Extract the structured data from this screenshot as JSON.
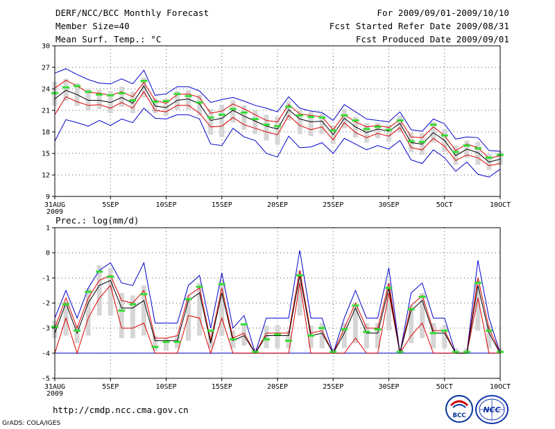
{
  "header": {
    "title": "DERF/NCC/BCC Monthly Forecast",
    "member_size": "Member Size=40",
    "variable_temp": "Mean Surf. Temp.: °C",
    "period": "For 2009/09/01-2009/10/10",
    "started": "Fcst Started Refer Date 2009/08/31",
    "produced": "Fcst Produced Date 2009/09/01"
  },
  "footer": {
    "url": "http://cmdp.ncc.cma.gov.cn",
    "grads": "GrADS: COLA/IGES",
    "logo_bcc": "BCC",
    "logo_ncc": "NCC"
  },
  "colors": {
    "outer": "#0000cc",
    "inner": "#dd0000",
    "mean": "#000000",
    "obs": "#33dd33",
    "box": "#d6d6d6"
  },
  "chart_data": [
    {
      "type": "line",
      "title": "Mean Surf. Temp.: °C",
      "ylabel": "°C",
      "ylim": [
        9,
        30
      ],
      "yticks": [
        9,
        12,
        15,
        18,
        21,
        24,
        27,
        30
      ],
      "x": [
        0,
        1,
        2,
        3,
        4,
        5,
        6,
        7,
        8,
        9,
        10,
        11,
        12,
        13,
        14,
        15,
        16,
        17,
        18,
        19,
        20,
        21,
        22,
        23,
        24,
        25,
        26,
        27,
        28,
        29,
        30,
        31,
        32,
        33,
        34,
        35,
        36,
        37,
        38,
        39,
        40
      ],
      "xticks": [
        {
          "x": 0,
          "label": "31AUG",
          "sub": "2009"
        },
        {
          "x": 5,
          "label": "5SEP"
        },
        {
          "x": 10,
          "label": "10SEP"
        },
        {
          "x": 15,
          "label": "15SEP"
        },
        {
          "x": 20,
          "label": "20SEP"
        },
        {
          "x": 25,
          "label": "25SEP"
        },
        {
          "x": 30,
          "label": "30SEP"
        },
        {
          "x": 35,
          "label": "5OCT"
        },
        {
          "x": 40,
          "label": "10OCT"
        }
      ],
      "series": [
        {
          "name": "max",
          "color": "blue",
          "values": [
            26.2,
            26.8,
            26,
            25.3,
            24.8,
            24.7,
            25.4,
            24.7,
            26.6,
            23.1,
            23.3,
            24.3,
            24.3,
            23.7,
            22.1,
            22.5,
            22.8,
            22.3,
            21.7,
            21.3,
            20.8,
            22.9,
            21.3,
            20.9,
            20.7,
            19.6,
            21.8,
            20.8,
            19.8,
            19.6,
            19.4,
            20.8,
            18.3,
            18.1,
            19.8,
            19.1,
            17,
            17.3,
            17.2,
            15.4,
            15.3
          ]
        },
        {
          "name": "p90",
          "color": "red",
          "values": [
            24.1,
            25.2,
            24.4,
            23.5,
            23.4,
            23.1,
            23.6,
            22.9,
            24.9,
            22.4,
            22,
            23.2,
            23.3,
            22.8,
            20.6,
            20.9,
            21.9,
            21.2,
            20.4,
            19.6,
            19.4,
            21.8,
            20.5,
            20.3,
            20.1,
            18.3,
            20.4,
            19.4,
            18.7,
            18.9,
            18.6,
            19.7,
            17.3,
            17.2,
            18.7,
            17.5,
            15.4,
            16.3,
            15.8,
            14.3,
            14.7
          ]
        },
        {
          "name": "mean",
          "color": "black",
          "values": [
            22.6,
            23.8,
            23.2,
            22.4,
            22.4,
            22.1,
            22.8,
            22,
            24.4,
            21.6,
            21.4,
            22.4,
            22.6,
            21.9,
            19.6,
            19.9,
            21,
            20.2,
            19.5,
            18.8,
            18.4,
            21.1,
            19.8,
            19.4,
            19.5,
            17.6,
            19.9,
            18.7,
            17.9,
            18.4,
            18.1,
            19.2,
            16.5,
            16.3,
            17.9,
            16.8,
            14.7,
            15.6,
            15.1,
            13.8,
            14.2
          ]
        },
        {
          "name": "p10",
          "color": "red",
          "values": [
            20.4,
            22.9,
            22.2,
            21.7,
            21.8,
            21.3,
            22.1,
            21.3,
            23.6,
            21,
            20.8,
            21.7,
            21.7,
            20.6,
            18.7,
            18.8,
            20,
            19,
            18.5,
            18,
            17.6,
            20.3,
            18.9,
            18.3,
            18.7,
            16.9,
            19.3,
            17.9,
            17.2,
            17.8,
            17.4,
            18.6,
            15.8,
            15.5,
            17.1,
            16,
            14,
            14.8,
            14.4,
            13.3,
            13.6
          ]
        },
        {
          "name": "min",
          "color": "blue",
          "values": [
            16.7,
            19.7,
            19.3,
            18.8,
            19.6,
            18.9,
            19.8,
            19.3,
            21.3,
            19.9,
            19.8,
            20.4,
            20.4,
            19.8,
            16.3,
            16.1,
            18.5,
            17.3,
            16.8,
            15,
            14.5,
            17.4,
            15.8,
            15.9,
            16.5,
            15,
            17.1,
            16.3,
            15.5,
            16.1,
            15.6,
            16.8,
            14.1,
            13.6,
            15.5,
            14.4,
            12.5,
            13.8,
            12.1,
            11.7,
            12.8
          ]
        },
        {
          "name": "obs",
          "color": "green",
          "values": [
            23.4,
            24.2,
            24.4,
            23.6,
            23.2,
            23.1,
            23.4,
            22.4,
            25.1,
            22.2,
            22.3,
            23.3,
            23,
            22.1,
            20,
            20.4,
            21.2,
            20.7,
            19.8,
            19,
            18.8,
            21.5,
            20.3,
            20.1,
            20,
            18.2,
            20.3,
            19.6,
            18.4,
            18.7,
            18.3,
            19.6,
            16.7,
            16.6,
            19,
            17.5,
            15.2,
            16.1,
            15.7,
            14.4,
            14.8
          ]
        },
        {
          "name": "box_top",
          "color": "gray",
          "values": [
            25,
            25.4,
            24.8,
            24,
            23.9,
            23.7,
            24.3,
            23.6,
            25.6,
            22.7,
            22.6,
            23.7,
            23.8,
            23.2,
            21.2,
            21.8,
            22.4,
            21.7,
            21,
            20.4,
            20.1,
            22.3,
            21,
            20.8,
            20.6,
            18.9,
            21.2,
            20.1,
            19.2,
            19.3,
            19,
            20.3,
            17.9,
            17.8,
            19.4,
            18.4,
            16.1,
            16.8,
            16.6,
            14.9,
            15.3
          ]
        },
        {
          "name": "box_bottom",
          "color": "gray",
          "values": [
            21.6,
            22.3,
            21.6,
            21,
            21.2,
            20.6,
            21.5,
            20.6,
            22.8,
            20.6,
            20.2,
            21.1,
            21.1,
            20.3,
            17.6,
            17.3,
            19.3,
            18.3,
            17.7,
            16.8,
            16.2,
            19.6,
            17.7,
            17.4,
            17.7,
            16.3,
            18.5,
            17.2,
            16.5,
            17.1,
            16.6,
            17.9,
            15.2,
            14.8,
            16.5,
            15.2,
            13.4,
            14.4,
            13.4,
            12.7,
            13.4
          ]
        }
      ]
    },
    {
      "type": "line",
      "title": "Prec.: log(mm/d)",
      "ylabel": "log(mm/d)",
      "ylim": [
        -5,
        1
      ],
      "yticks": [
        -5,
        -4,
        -3,
        -2,
        -1,
        0,
        1
      ],
      "x": [
        0,
        1,
        2,
        3,
        4,
        5,
        6,
        7,
        8,
        9,
        10,
        11,
        12,
        13,
        14,
        15,
        16,
        17,
        18,
        19,
        20,
        21,
        22,
        23,
        24,
        25,
        26,
        27,
        28,
        29,
        30,
        31,
        32,
        33,
        34,
        35,
        36,
        37,
        38,
        39,
        40
      ],
      "xticks": [
        {
          "x": 0,
          "label": "31AUG",
          "sub": "2009"
        },
        {
          "x": 5,
          "label": "5SEP"
        },
        {
          "x": 10,
          "label": "10SEP"
        },
        {
          "x": 15,
          "label": "15SEP"
        },
        {
          "x": 20,
          "label": "20SEP"
        },
        {
          "x": 25,
          "label": "25SEP"
        },
        {
          "x": 30,
          "label": "30SEP"
        },
        {
          "x": 35,
          "label": "5OCT"
        },
        {
          "x": 40,
          "label": "10OCT"
        }
      ],
      "series": [
        {
          "name": "max",
          "color": "blue",
          "values": [
            -2.6,
            -1.5,
            -2.6,
            -1.4,
            -0.7,
            -0.4,
            -1.2,
            -1.3,
            -0.4,
            -2.8,
            -2.8,
            -2.8,
            -1.3,
            -0.9,
            -3,
            -0.8,
            -3,
            -2.5,
            -4,
            -2.6,
            -2.6,
            -2.6,
            0.1,
            -2.6,
            -2.6,
            -4,
            -2.6,
            -1.5,
            -2.6,
            -2.6,
            -0.6,
            -4,
            -1.6,
            -1.2,
            -2.6,
            -2.6,
            -4,
            -4,
            -0.3,
            -2.6,
            -4
          ]
        },
        {
          "name": "p90",
          "color": "red",
          "values": [
            -3,
            -1.8,
            -3,
            -1.8,
            -1.1,
            -0.9,
            -1.9,
            -2,
            -1.5,
            -3.4,
            -3.4,
            -3.3,
            -1.7,
            -1.4,
            -3.5,
            -1.4,
            -3.4,
            -3.2,
            -4,
            -3.2,
            -3.2,
            -3.2,
            -0.7,
            -3.2,
            -3.1,
            -4,
            -3,
            -2,
            -3,
            -3,
            -1.2,
            -4,
            -2.1,
            -1.7,
            -3.1,
            -3.1,
            -4,
            -4,
            -1,
            -3,
            -4
          ]
        },
        {
          "name": "mean",
          "color": "black",
          "values": [
            -3.2,
            -2,
            -3.2,
            -2,
            -1.3,
            -1.1,
            -2.2,
            -2.2,
            -1.9,
            -3.5,
            -3.5,
            -3.5,
            -1.9,
            -1.6,
            -3.6,
            -1.6,
            -3.5,
            -3.3,
            -4,
            -3.3,
            -3.3,
            -3.3,
            -0.9,
            -3.3,
            -3.2,
            -4,
            -3.2,
            -2.2,
            -3.2,
            -3.2,
            -1.4,
            -4,
            -2.3,
            -1.9,
            -3.2,
            -3.2,
            -4,
            -4,
            -1.3,
            -3.2,
            -4
          ]
        },
        {
          "name": "p10",
          "color": "red",
          "values": [
            -4,
            -2.6,
            -4,
            -2.6,
            -1.8,
            -1.3,
            -3,
            -3,
            -2.8,
            -4,
            -4,
            -4,
            -2.5,
            -2.6,
            -4,
            -2.6,
            -4,
            -4,
            -4,
            -4,
            -4,
            -4,
            -1.2,
            -4,
            -4,
            -4,
            -4,
            -3.4,
            -4,
            -4,
            -1.6,
            -4,
            -3.3,
            -2.8,
            -4,
            -4,
            -4,
            -4,
            -1.8,
            -4,
            -4
          ]
        },
        {
          "name": "min",
          "color": "blue",
          "values": [
            -4,
            -4,
            -4,
            -4,
            -4,
            -4,
            -4,
            -4,
            -4,
            -4,
            -4,
            -4,
            -4,
            -4,
            -4,
            -4,
            -4,
            -4,
            -4,
            -4,
            -4,
            -4,
            -4,
            -4,
            -4,
            -4,
            -4,
            -4,
            -4,
            -4,
            -4,
            -4,
            -4,
            -4,
            -4,
            -4,
            -4,
            -4,
            -4,
            -4,
            -4
          ]
        },
        {
          "name": "obs",
          "color": "green",
          "values": [
            -2.95,
            -2.05,
            -3.1,
            -1.55,
            -0.75,
            -0.95,
            -2.3,
            -2.05,
            -1.65,
            -3.75,
            -3.55,
            -3.55,
            -1.85,
            -1.35,
            -3.1,
            -1.25,
            -3.45,
            -2.85,
            -3.95,
            -3.45,
            -3.25,
            -3.5,
            -0.9,
            -3.3,
            -3,
            -3.95,
            -3.05,
            -2.1,
            -3.15,
            -3.05,
            -1.4,
            -3.95,
            -2.25,
            -1.75,
            -3.2,
            -3.1,
            -3.95,
            -3.95,
            -1.2,
            -3.1,
            -3.95
          ]
        },
        {
          "name": "box_top",
          "color": "gray",
          "values": [
            -2.7,
            -2,
            -2.9,
            -1.4,
            -0.5,
            -0.6,
            -1.6,
            -1.7,
            -1.3,
            -3.3,
            -3.4,
            -3.3,
            -1.7,
            -1.2,
            -3.1,
            -1.1,
            -3.1,
            -2.8,
            -3.8,
            -2.9,
            -2.9,
            -3.1,
            -0.7,
            -2.9,
            -2.8,
            -3.8,
            -2.8,
            -2.1,
            -2.8,
            -2.8,
            -1.2,
            -3.8,
            -2.1,
            -1.6,
            -2.8,
            -2.9,
            -3.8,
            -3.8,
            -1.1,
            -2.9,
            -3.8
          ]
        },
        {
          "name": "box_bottom",
          "color": "gray",
          "values": [
            -3.4,
            -3.3,
            -3.6,
            -3.3,
            -2.5,
            -2.5,
            -3.4,
            -3.4,
            -3.3,
            -3.9,
            -3.9,
            -3.8,
            -3.5,
            -3.3,
            -3.8,
            -3.3,
            -3.8,
            -3.7,
            -4,
            -3.8,
            -3.8,
            -3.8,
            -2.5,
            -3.8,
            -3.8,
            -4,
            -3.8,
            -3.6,
            -3.8,
            -3.8,
            -3.1,
            -4,
            -3.6,
            -3.4,
            -3.8,
            -3.8,
            -4,
            -4,
            -3.1,
            -3.8,
            -4
          ]
        }
      ]
    }
  ]
}
